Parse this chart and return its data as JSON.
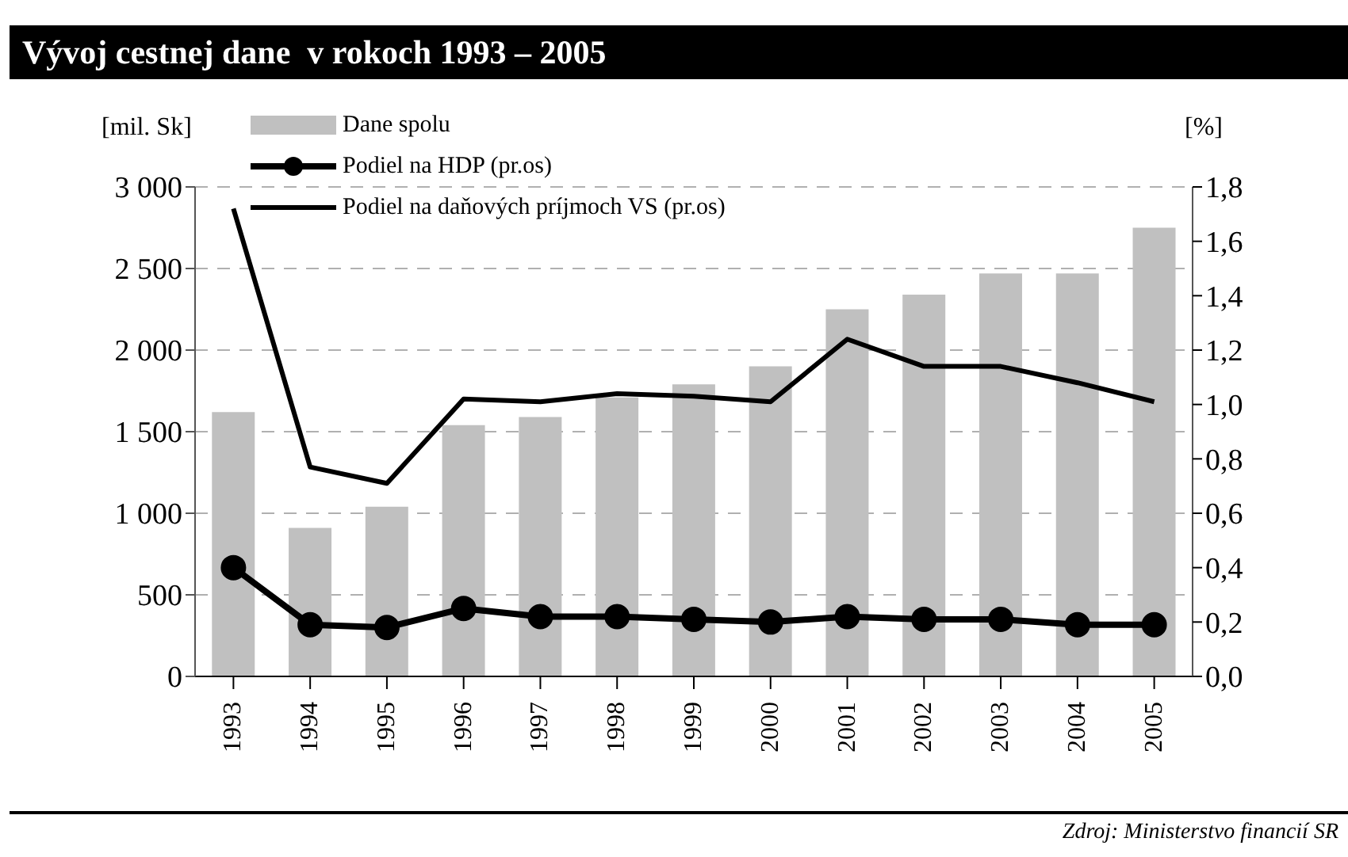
{
  "chart_data": {
    "type": "bar",
    "title": "Vývoj cestnej dane  v rokoch 1993 – 2005",
    "ylabel": "[mil. Sk]",
    "y2label": "[%]",
    "annotations": [
      "Zdroj: Ministerstvo financií SR"
    ],
    "categories": [
      "1993",
      "1994",
      "1995",
      "1996",
      "1997",
      "1998",
      "1999",
      "2000",
      "2001",
      "2002",
      "2003",
      "2004",
      "2005"
    ],
    "series": [
      {
        "name": "Dane spolu",
        "color": "#c0c0c0",
        "values": [
          1620,
          910,
          1040,
          1540,
          1590,
          1710,
          1790,
          1900,
          2250,
          2340,
          2470,
          2470,
          2750
        ]
      },
      {
        "name": "Podiel na HDP (pr.os)",
        "type": "line",
        "axis": "y2",
        "color": "#000000",
        "marker": "circle",
        "values": [
          0.4,
          0.19,
          0.18,
          0.25,
          0.22,
          0.22,
          0.21,
          0.2,
          0.22,
          0.21,
          0.21,
          0.19,
          0.19
        ]
      },
      {
        "name": "Podiel na daňových príjmoch VS (pr.os)",
        "type": "line",
        "axis": "y2",
        "color": "#000000",
        "marker": "none",
        "values": [
          1.72,
          0.77,
          0.71,
          1.02,
          1.01,
          1.04,
          1.03,
          1.01,
          1.24,
          1.14,
          1.14,
          1.08,
          1.01
        ]
      }
    ],
    "ylim": [
      0,
      3000
    ],
    "yticks": [
      0,
      500,
      {
        "value": 1000,
        "label": "1 000"
      },
      {
        "value": 1500,
        "label": "1 500"
      },
      {
        "value": 2000,
        "label": "2 000"
      },
      {
        "value": 2500,
        "label": "2 500"
      },
      {
        "value": 3000,
        "label": "3 000"
      }
    ],
    "y2lim": [
      0,
      1.8
    ],
    "y2ticks": [
      {
        "value": 0,
        "label": "0,0"
      },
      {
        "value": 0.2,
        "label": "0,2"
      },
      {
        "value": 0.4,
        "label": "0,4"
      },
      {
        "value": 0.6,
        "label": "0,6"
      },
      {
        "value": 0.8,
        "label": "0,8"
      },
      {
        "value": 1,
        "label": "1,0"
      },
      {
        "value": 1.2,
        "label": "1,2"
      },
      {
        "value": 1.4,
        "label": "1,4"
      },
      {
        "value": 1.6,
        "label": "1,6"
      },
      {
        "value": 1.8,
        "label": "1,8"
      }
    ],
    "grid": "y",
    "legend": "top left",
    "line_style": "solid"
  }
}
